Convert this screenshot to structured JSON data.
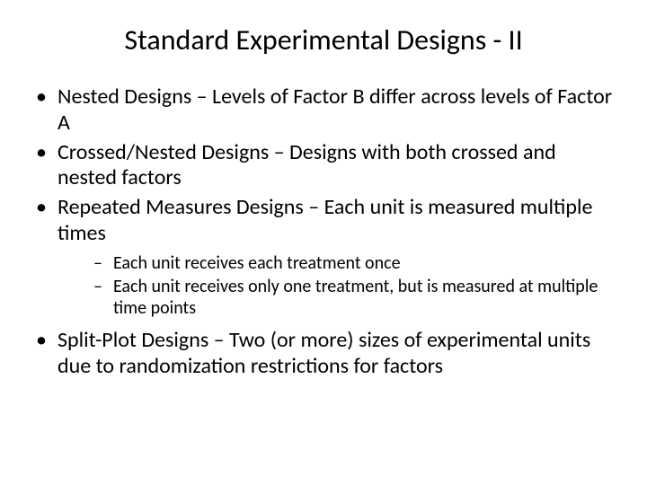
{
  "slide": {
    "title": "Standard Experimental Designs - II",
    "bullets": [
      {
        "text": "Nested Designs – Levels of Factor B differ across levels of Factor A"
      },
      {
        "text": "Crossed/Nested Designs – Designs with both crossed and nested factors"
      },
      {
        "text": "Repeated Measures Designs – Each unit is measured multiple times",
        "subbullets": [
          "Each unit receives each treatment once",
          "Each unit receives only one treatment, but is measured at multiple time points"
        ]
      },
      {
        "text": "Split-Plot Designs – Two (or more) sizes of experimental units due to randomization restrictions for factors"
      }
    ],
    "styling": {
      "background_color": "#ffffff",
      "text_color": "#000000",
      "title_fontsize": 32,
      "bullet_fontsize": 24,
      "subbullet_fontsize": 20,
      "font_family": "Calibri"
    }
  }
}
